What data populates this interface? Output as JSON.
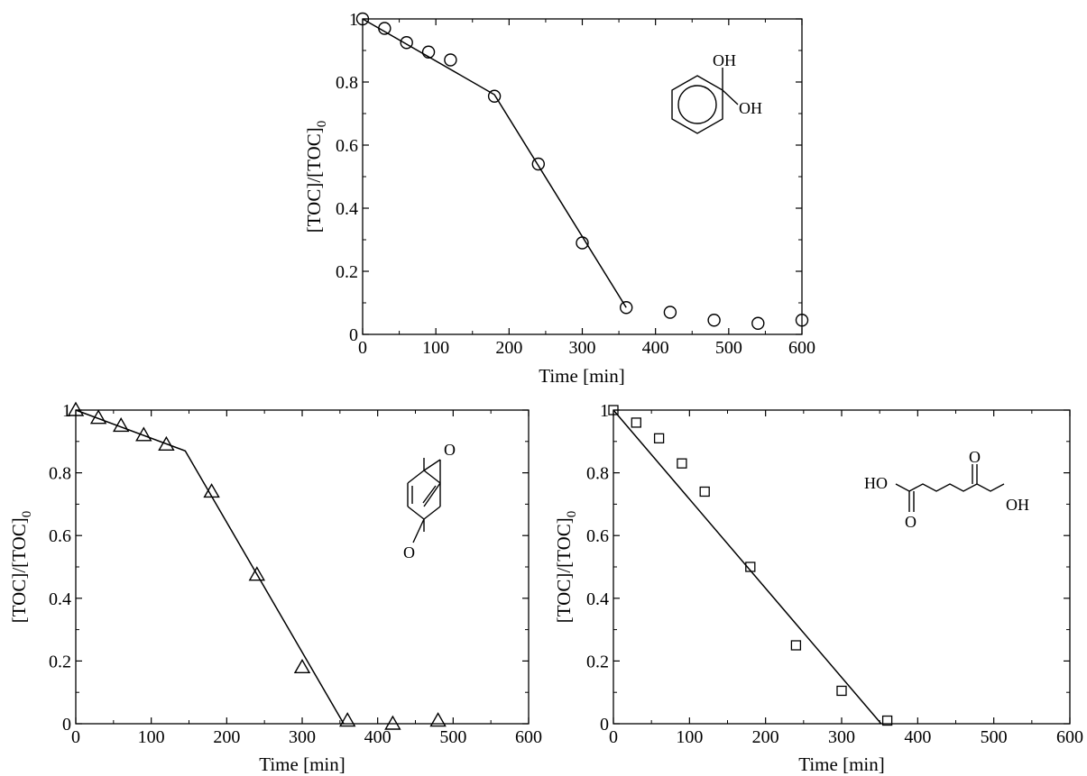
{
  "figure": {
    "background": "#ffffff",
    "ink_color": "#000000"
  },
  "chart_data": [
    {
      "type": "scatter",
      "panel": "top",
      "compound_labels": [
        "OH",
        "OH"
      ],
      "structure_icon": "catechol-structure-icon",
      "marker": "circle",
      "xlabel": "Time [min]",
      "ylabel_main": "[TOC]/[TOC]",
      "ylabel_sub": "0",
      "xlim": [
        0,
        600
      ],
      "ylim": [
        0,
        1
      ],
      "xticks": [
        "0",
        "100",
        "200",
        "300",
        "400",
        "500",
        "600"
      ],
      "yticks": [
        "0",
        "0.2",
        "0.4",
        "0.6",
        "0.8",
        "1"
      ],
      "grid": false,
      "points": [
        [
          0,
          1.0
        ],
        [
          30,
          0.97
        ],
        [
          60,
          0.925
        ],
        [
          90,
          0.895
        ],
        [
          120,
          0.87
        ],
        [
          180,
          0.755
        ],
        [
          240,
          0.54
        ],
        [
          300,
          0.29
        ],
        [
          360,
          0.085
        ],
        [
          420,
          0.07
        ],
        [
          480,
          0.045
        ],
        [
          540,
          0.035
        ],
        [
          600,
          0.045
        ]
      ],
      "fit_line": [
        [
          0,
          1.0
        ],
        [
          180,
          0.76
        ],
        [
          360,
          0.085
        ]
      ]
    },
    {
      "type": "scatter",
      "panel": "bottom-left",
      "compound_labels": [
        "O",
        "O"
      ],
      "structure_icon": "benzoquinone-structure-icon",
      "marker": "triangle",
      "xlabel": "Time [min]",
      "ylabel_main": "[TOC]/[TOC]",
      "ylabel_sub": "0",
      "xlim": [
        0,
        600
      ],
      "ylim": [
        0,
        1
      ],
      "xticks": [
        "0",
        "100",
        "200",
        "300",
        "400",
        "500",
        "600"
      ],
      "yticks": [
        "0",
        "0.2",
        "0.4",
        "0.6",
        "0.8",
        "1"
      ],
      "grid": false,
      "points": [
        [
          0,
          1.0
        ],
        [
          30,
          0.975
        ],
        [
          60,
          0.95
        ],
        [
          90,
          0.92
        ],
        [
          120,
          0.89
        ],
        [
          180,
          0.74
        ],
        [
          240,
          0.475
        ],
        [
          300,
          0.18
        ],
        [
          360,
          0.01
        ],
        [
          420,
          0.0
        ],
        [
          480,
          0.01
        ]
      ],
      "fit_line": [
        [
          0,
          1.0
        ],
        [
          145,
          0.87
        ],
        [
          355,
          0.0
        ]
      ]
    },
    {
      "type": "scatter",
      "panel": "bottom-right",
      "compound_labels": [
        "HO",
        "OH",
        "O",
        "O"
      ],
      "structure_icon": "adipic-acid-structure-icon",
      "marker": "square",
      "xlabel": "Time [min]",
      "ylabel_main": "[TOC]/[TOC]",
      "ylabel_sub": "0",
      "xlim": [
        0,
        600
      ],
      "ylim": [
        0,
        1
      ],
      "xticks": [
        "0",
        "100",
        "200",
        "300",
        "400",
        "500",
        "600"
      ],
      "yticks": [
        "0",
        "0.2",
        "0.4",
        "0.6",
        "0.8",
        "1"
      ],
      "grid": false,
      "points": [
        [
          0,
          1.0
        ],
        [
          30,
          0.96
        ],
        [
          60,
          0.91
        ],
        [
          90,
          0.83
        ],
        [
          120,
          0.74
        ],
        [
          180,
          0.5
        ],
        [
          240,
          0.25
        ],
        [
          300,
          0.105
        ],
        [
          360,
          0.01
        ]
      ],
      "fit_line": [
        [
          0,
          1.0
        ],
        [
          352,
          0.0
        ]
      ]
    }
  ]
}
